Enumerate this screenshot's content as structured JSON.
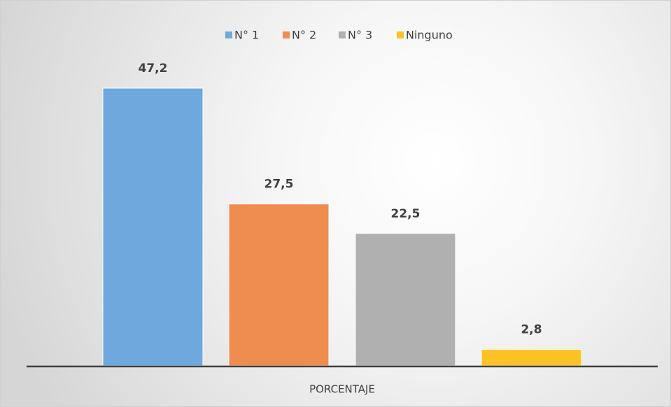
{
  "chart_data": {
    "type": "bar",
    "categories": [
      "PORCENTAJE"
    ],
    "series": [
      {
        "name": "N° 1",
        "color": "#6fa8dc",
        "values": [
          47.2
        ],
        "value_labels": [
          "47,2"
        ]
      },
      {
        "name": "N° 2",
        "color": "#ef8c4f",
        "values": [
          27.5
        ],
        "value_labels": [
          "27,5"
        ]
      },
      {
        "name": "N° 3",
        "color": "#b0b0b0",
        "values": [
          22.5
        ],
        "value_labels": [
          "22,5"
        ]
      },
      {
        "name": "Ninguno",
        "color": "#fdc326",
        "values": [
          2.8
        ],
        "value_labels": [
          "2,8"
        ]
      }
    ],
    "legend": "top"
  }
}
